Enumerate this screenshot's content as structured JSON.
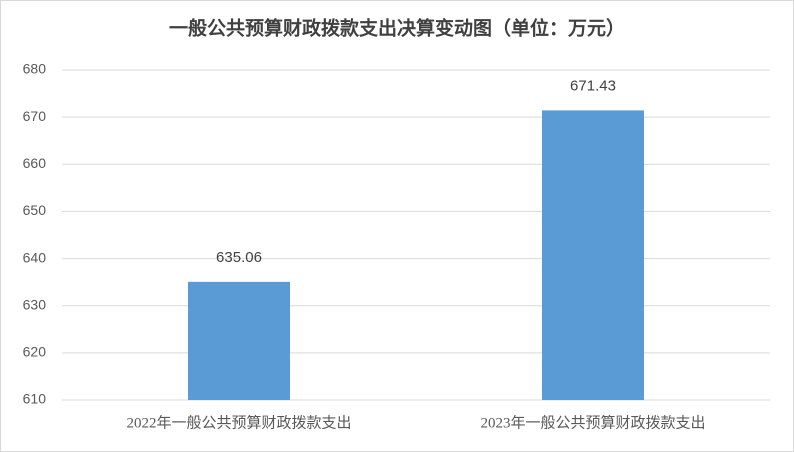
{
  "chart_data": {
    "type": "bar",
    "title": "一般公共预算财政拨款支出决算变动图（单位：万元）",
    "categories": [
      "2022年一般公共预算财政拨款支出",
      "2023年一般公共预算财政拨款支出"
    ],
    "values": [
      635.06,
      671.43
    ],
    "color": "#5b9bd5",
    "ylim": [
      610,
      680
    ],
    "yticks": [
      610,
      620,
      630,
      640,
      650,
      660,
      670,
      680
    ],
    "grid": true
  }
}
